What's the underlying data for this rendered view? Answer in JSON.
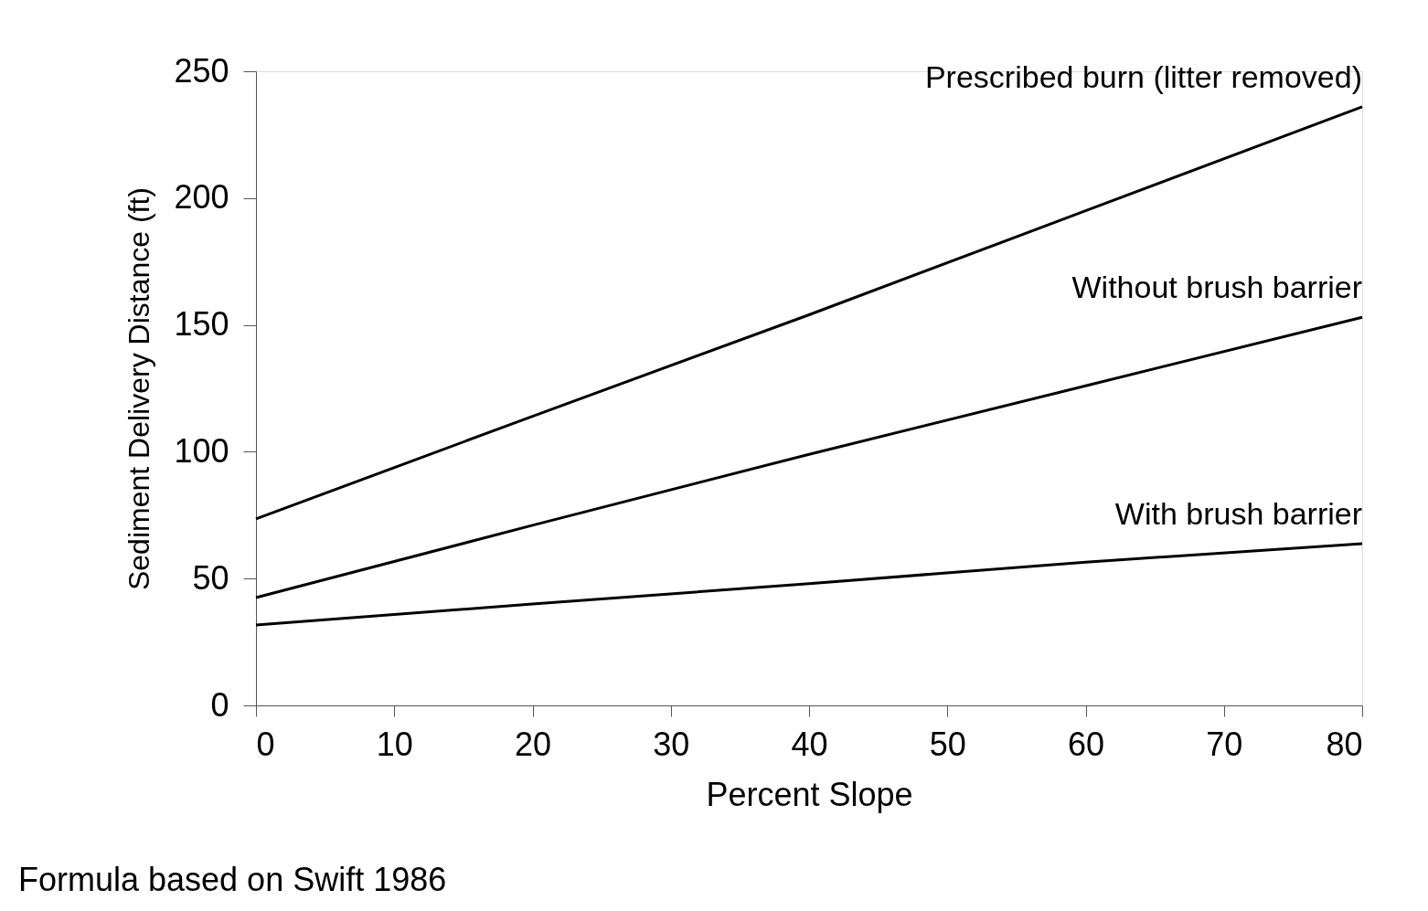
{
  "chart_data": {
    "type": "line",
    "xlabel": "Percent Slope",
    "ylabel": "Sediment Delivery Distance (ft)",
    "x": [
      0,
      20,
      40,
      60,
      80
    ],
    "series": [
      {
        "name": "Prescribed burn (litter removed)",
        "color": "#000000",
        "values": [
          73.5,
          114,
          154,
          195,
          236
        ]
      },
      {
        "name": "Without brush barrier",
        "color": "#000000",
        "values": [
          42.5,
          71,
          99,
          126,
          153
        ]
      },
      {
        "name": "With brush barrier",
        "color": "#000000",
        "values": [
          31.7,
          40,
          48,
          56.5,
          63.8
        ]
      }
    ],
    "xlim": [
      0,
      80
    ],
    "xticks": [
      0,
      10,
      20,
      30,
      40,
      50,
      60,
      70,
      80
    ],
    "ylim": [
      0,
      250
    ],
    "yticks": [
      0,
      50,
      100,
      150,
      200,
      250
    ],
    "grid": false,
    "legend": false,
    "marker": "none",
    "line_style": "solid",
    "annotations": [
      "Formula based on Swift 1986"
    ]
  }
}
